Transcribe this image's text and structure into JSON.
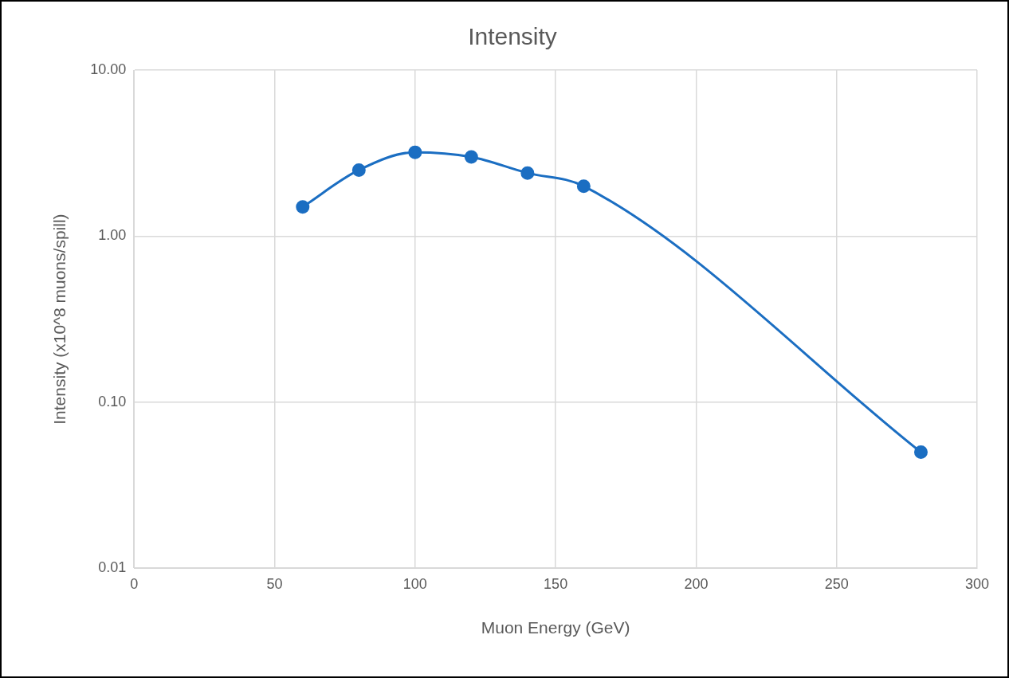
{
  "chart_data": {
    "type": "line",
    "title": "Intensity",
    "xlabel": "Muon Energy (GeV)",
    "ylabel": "Intensity (x10^8 muons/spill)",
    "x": [
      60,
      80,
      100,
      120,
      140,
      160,
      280
    ],
    "series": [
      {
        "color": "#1b6ec2",
        "values": [
          1.5,
          2.5,
          3.2,
          3.0,
          2.4,
          2.0,
          0.05
        ]
      }
    ],
    "xlim": [
      0,
      300
    ],
    "xticks": [
      0,
      50,
      100,
      150,
      200,
      250,
      300
    ],
    "ylim": [
      0.01,
      10
    ],
    "yticks": [
      {
        "value": 0.01,
        "label": "0.01"
      },
      {
        "value": 0.1,
        "label": "0.10"
      },
      {
        "value": 1,
        "label": "1.00"
      },
      {
        "value": 10,
        "label": "10.00"
      }
    ],
    "log": "y",
    "grid": true,
    "legend": false,
    "marker": "circle",
    "line_style": "solid"
  }
}
